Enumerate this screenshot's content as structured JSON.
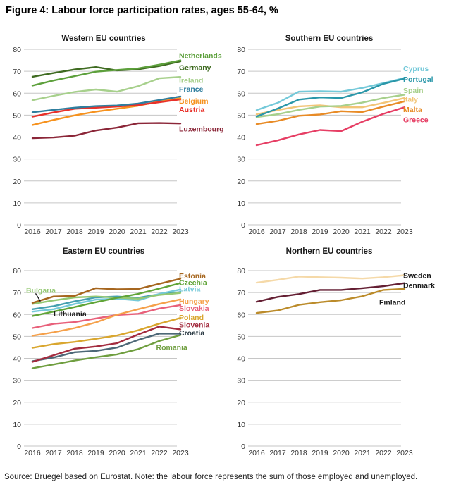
{
  "figure": {
    "title": "Figure 4: Labour force participation rates, ages 55-64, %",
    "source_note": "Source: Bruegel based on Eurostat. Note: the labour force represents the sum of those employed and unemployed."
  },
  "chart_data": [
    {
      "id": "western",
      "type": "line",
      "title": "Western EU countries",
      "x": [
        2016,
        2017,
        2018,
        2019,
        2020,
        2021,
        2022,
        2023
      ],
      "ylim": [
        0,
        80
      ],
      "yticks": [
        0,
        10,
        20,
        30,
        40,
        50,
        60,
        70,
        80
      ],
      "grid": true,
      "legend_position": "right-labels",
      "series": [
        {
          "name": "Luxembourg",
          "color": "#8b2638",
          "values": [
            39.5,
            39.8,
            40.6,
            43.0,
            44.3,
            46.3,
            46.4,
            46.2
          ],
          "label_value": 43.8
        },
        {
          "name": "Belgium",
          "color": "#f6921e",
          "values": [
            45.5,
            47.8,
            49.9,
            51.6,
            52.9,
            54.3,
            56.2,
            57.7
          ],
          "label_value": 56.5
        },
        {
          "name": "Austria",
          "color": "#e8312a",
          "values": [
            49.3,
            51.2,
            52.9,
            53.4,
            53.9,
            54.6,
            55.9,
            57.2
          ],
          "label_value": 52.7
        },
        {
          "name": "France",
          "color": "#2f7e9e",
          "values": [
            51.3,
            52.4,
            53.4,
            54.1,
            54.4,
            55.3,
            56.9,
            58.5
          ],
          "label_value": 62.0
        },
        {
          "name": "Ireland",
          "color": "#a7d08c",
          "values": [
            56.8,
            58.8,
            60.6,
            61.7,
            60.7,
            63.2,
            66.8,
            67.4
          ],
          "label_value": 66.1
        },
        {
          "name": "Germany",
          "color": "#3f6b21",
          "values": [
            67.5,
            69.2,
            70.8,
            71.9,
            70.4,
            70.9,
            72.4,
            74.5
          ],
          "label_value": 71.8
        },
        {
          "name": "Netherlands",
          "color": "#5da03c",
          "values": [
            63.5,
            65.8,
            67.8,
            69.8,
            70.6,
            71.3,
            73.0,
            75.0
          ],
          "label_value": 77.2
        }
      ]
    },
    {
      "id": "southern",
      "type": "line",
      "title": "Southern EU countries",
      "x": [
        2016,
        2017,
        2018,
        2019,
        2020,
        2021,
        2022,
        2023
      ],
      "ylim": [
        0,
        80
      ],
      "yticks": [
        0,
        10,
        20,
        30,
        40,
        50,
        60,
        70,
        80
      ],
      "grid": true,
      "legend_position": "right-labels",
      "series": [
        {
          "name": "Greece",
          "color": "#e63e64",
          "values": [
            36.3,
            38.5,
            41.2,
            43.2,
            42.7,
            47.0,
            50.6,
            53.6
          ],
          "label_value": 48.0
        },
        {
          "name": "Malta",
          "color": "#e88b26",
          "values": [
            45.9,
            47.4,
            49.7,
            50.3,
            51.8,
            51.4,
            53.9,
            56.3
          ],
          "label_value": 52.7
        },
        {
          "name": "Italy",
          "color": "#f2c577",
          "values": [
            50.4,
            52.3,
            54.0,
            54.5,
            53.6,
            53.6,
            55.6,
            57.8
          ],
          "label_value": 57.4
        },
        {
          "name": "Spain",
          "color": "#a7d08c",
          "values": [
            49.1,
            50.4,
            52.4,
            53.9,
            54.2,
            55.7,
            57.8,
            59.3
          ],
          "label_value": 61.4
        },
        {
          "name": "Cyprus",
          "color": "#74c9d9",
          "values": [
            52.3,
            55.6,
            60.7,
            60.9,
            60.7,
            62.4,
            64.6,
            67.0
          ],
          "label_value": 71.3
        },
        {
          "name": "Portugal",
          "color": "#2a97a9",
          "values": [
            49.4,
            53.0,
            57.1,
            58.1,
            57.8,
            60.4,
            64.3,
            66.7
          ],
          "label_value": 66.5
        }
      ]
    },
    {
      "id": "eastern",
      "type": "line",
      "title": "Eastern EU countries",
      "x": [
        2016,
        2017,
        2018,
        2019,
        2020,
        2021,
        2022,
        2023
      ],
      "ylim": [
        0,
        80
      ],
      "yticks": [
        0,
        10,
        20,
        30,
        40,
        50,
        60,
        70,
        80
      ],
      "grid": true,
      "legend_position": "right-labels",
      "series": [
        {
          "name": "Romania",
          "color": "#6f9e3f",
          "values": [
            35.5,
            37.2,
            39.0,
            40.5,
            41.8,
            44.2,
            47.9,
            50.6
          ],
          "label_inline": {
            "anchor_year": 2021.85,
            "value": 45.2
          }
        },
        {
          "name": "Croatia",
          "color": "#4d6877",
          "values": [
            38.7,
            40.4,
            42.8,
            43.4,
            44.9,
            48.4,
            51.3,
            51.2
          ],
          "label_value": 51.8,
          "label_color": "#2b3a43"
        },
        {
          "name": "Slovenia",
          "color": "#a32b3e",
          "values": [
            38.4,
            41.4,
            44.4,
            45.4,
            46.9,
            50.9,
            54.5,
            53.2
          ],
          "label_value": 55.4
        },
        {
          "name": "Poland",
          "color": "#d9a62e",
          "values": [
            44.8,
            46.5,
            47.5,
            48.9,
            50.4,
            52.8,
            55.8,
            58.4
          ],
          "label_value": 58.8
        },
        {
          "name": "Slovakia",
          "color": "#e8607a",
          "values": [
            53.8,
            55.7,
            56.5,
            58.2,
            59.8,
            60.3,
            62.7,
            64.3
          ],
          "label_value": 63.0
        },
        {
          "name": "Hungary",
          "color": "#f5a04a",
          "values": [
            50.3,
            51.9,
            53.8,
            56.4,
            59.9,
            62.4,
            64.8,
            66.9
          ],
          "label_value": 66.2
        },
        {
          "name": "Lithuania",
          "color": "#45a0b0",
          "values": [
            62.4,
            63.8,
            66.0,
            67.8,
            68.2,
            67.6,
            69.2,
            70.2
          ],
          "label_inline": {
            "anchor_year": 2017.0,
            "value": 60.4
          },
          "label_color": "#1a1a1a"
        },
        {
          "name": "Latvia",
          "color": "#74c9d9",
          "values": [
            61.3,
            62.4,
            64.8,
            66.8,
            67.2,
            66.4,
            69.4,
            71.4
          ],
          "label_value": 71.8
        },
        {
          "name": "Bulgaria",
          "color": "#94c873",
          "values": [
            64.8,
            66.4,
            67.8,
            68.2,
            67.7,
            67.2,
            68.9,
            69.8
          ],
          "label_inline": {
            "anchor_year": 2015.7,
            "value": 71.2
          }
        },
        {
          "name": "Czechia",
          "color": "#60a437",
          "values": [
            59.3,
            61.3,
            63.4,
            65.6,
            67.6,
            69.4,
            71.8,
            74.3
          ],
          "label_value": 74.7
        },
        {
          "name": "Estonia",
          "color": "#a6661f",
          "values": [
            65.3,
            68.2,
            68.5,
            72.0,
            71.5,
            71.6,
            74.0,
            76.3
          ],
          "label_value": 77.8
        }
      ],
      "callouts": [
        {
          "label": "Bulgaria",
          "from": [
            2016.15,
            69.6
          ],
          "to": [
            2016.38,
            66.0
          ]
        }
      ]
    },
    {
      "id": "northern",
      "type": "line",
      "title": "Northern EU countries",
      "x": [
        2016,
        2017,
        2018,
        2019,
        2020,
        2021,
        2022,
        2023
      ],
      "ylim": [
        0,
        80
      ],
      "yticks": [
        0,
        10,
        20,
        30,
        40,
        50,
        60,
        70,
        80
      ],
      "grid": true,
      "legend_position": "right-labels",
      "series": [
        {
          "name": "Finland",
          "color": "#bb8b2a",
          "values": [
            60.7,
            61.8,
            64.4,
            65.6,
            66.5,
            68.3,
            71.2,
            71.7
          ],
          "label_inline": {
            "anchor_year": 2021.8,
            "value": 65.7
          },
          "label_color": "#1a1a1a"
        },
        {
          "name": "Denmark",
          "color": "#641f33",
          "values": [
            65.8,
            68.0,
            69.3,
            71.2,
            71.2,
            72.0,
            72.9,
            74.3
          ],
          "label_value": 73.4,
          "label_color": "#1a1a1a"
        },
        {
          "name": "Sweden",
          "color": "#f5d9a8",
          "values": [
            74.5,
            75.8,
            77.3,
            77.0,
            76.8,
            76.4,
            77.0,
            77.9
          ],
          "label_value": 77.9,
          "label_color": "#1a1a1a"
        }
      ]
    }
  ]
}
